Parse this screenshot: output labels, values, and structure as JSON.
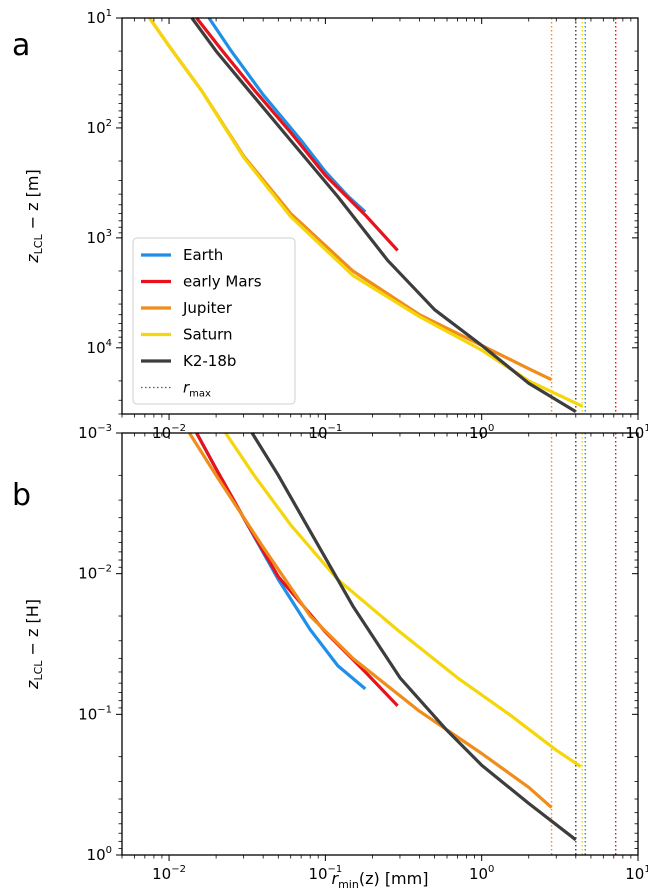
{
  "chart_data": [
    {
      "panel_label": "a",
      "type": "line",
      "x_scale": "log",
      "y_scale": "log",
      "y_inverted": true,
      "xlim": [
        0.005,
        10
      ],
      "ylim": [
        10,
        40000
      ],
      "x_ticks": [
        {
          "base": "10",
          "exp": "−2",
          "value": 0.01
        },
        {
          "base": "10",
          "exp": "−1",
          "value": 0.1
        },
        {
          "base": "10",
          "exp": "0",
          "value": 1
        },
        {
          "base": "10",
          "exp": "1",
          "value": 10
        }
      ],
      "y_ticks": [
        {
          "base": "10",
          "exp": "1",
          "value": 10
        },
        {
          "base": "10",
          "exp": "2",
          "value": 100
        },
        {
          "base": "10",
          "exp": "3",
          "value": 1000
        },
        {
          "base": "10",
          "exp": "4",
          "value": 10000
        }
      ],
      "ylabel": {
        "main": "z",
        "sub": "LCL",
        "rest": " − z [m]"
      },
      "legend": {
        "position": "lower-left",
        "entries": [
          "Earth",
          "early Mars",
          "Jupiter",
          "Saturn",
          "K2-18b",
          "r_max"
        ]
      },
      "series": [
        {
          "name": "Earth",
          "color": "#1f8fe8",
          "points": [
            [
              0.018,
              10
            ],
            [
              0.025,
              20
            ],
            [
              0.04,
              50
            ],
            [
              0.07,
              130
            ],
            [
              0.1,
              250
            ],
            [
              0.14,
              420
            ],
            [
              0.18,
              580
            ]
          ]
        },
        {
          "name": "early Mars",
          "color": "#e8121c",
          "points": [
            [
              0.015,
              10
            ],
            [
              0.022,
              20
            ],
            [
              0.035,
              45
            ],
            [
              0.06,
              110
            ],
            [
              0.1,
              270
            ],
            [
              0.18,
              620
            ],
            [
              0.29,
              1300
            ]
          ]
        },
        {
          "name": "Jupiter",
          "color": "#f08c1a",
          "points": [
            [
              0.0075,
              10
            ],
            [
              0.01,
              18
            ],
            [
              0.016,
              45
            ],
            [
              0.03,
              180
            ],
            [
              0.06,
              600
            ],
            [
              0.15,
              2000
            ],
            [
              0.4,
              5000
            ],
            [
              1.0,
              9500
            ],
            [
              2.0,
              15500
            ],
            [
              2.8,
              19500
            ]
          ]
        },
        {
          "name": "Saturn",
          "color": "#f5d60a",
          "points": [
            [
              0.0075,
              10
            ],
            [
              0.01,
              18
            ],
            [
              0.016,
              45
            ],
            [
              0.03,
              185
            ],
            [
              0.06,
              640
            ],
            [
              0.15,
              2200
            ],
            [
              0.4,
              5200
            ],
            [
              1.0,
              10500
            ],
            [
              2.0,
              20000
            ],
            [
              4.4,
              34000
            ]
          ]
        },
        {
          "name": "K2-18b",
          "color": "#3d3d3d",
          "points": [
            [
              0.014,
              10
            ],
            [
              0.02,
              20
            ],
            [
              0.03,
              40
            ],
            [
              0.06,
              130
            ],
            [
              0.12,
              420
            ],
            [
              0.25,
              1600
            ],
            [
              0.5,
              4500
            ],
            [
              1.0,
              9500
            ],
            [
              2.0,
              21000
            ],
            [
              4.0,
              38000
            ]
          ]
        }
      ],
      "rmax": [
        {
          "x": 2.8,
          "color": "#f08c1a"
        },
        {
          "x": 4.0,
          "color": "#3d3d3d"
        },
        {
          "x": 4.4,
          "color": "#f5d60a"
        },
        {
          "x": 4.6,
          "color": "#1f8fe8"
        },
        {
          "x": 7.2,
          "color": "#e8121c"
        }
      ]
    },
    {
      "panel_label": "b",
      "type": "line",
      "x_scale": "log",
      "y_scale": "log",
      "y_inverted": true,
      "xlim": [
        0.005,
        10
      ],
      "ylim": [
        0.001,
        1
      ],
      "x_ticks": [
        {
          "base": "10",
          "exp": "−2",
          "value": 0.01
        },
        {
          "base": "10",
          "exp": "−1",
          "value": 0.1
        },
        {
          "base": "10",
          "exp": "0",
          "value": 1
        },
        {
          "base": "10",
          "exp": "1",
          "value": 10
        }
      ],
      "y_ticks": [
        {
          "base": "10",
          "exp": "−3",
          "value": 0.001
        },
        {
          "base": "10",
          "exp": "−2",
          "value": 0.01
        },
        {
          "base": "10",
          "exp": "−1",
          "value": 0.1
        },
        {
          "base": "10",
          "exp": "0",
          "value": 1
        }
      ],
      "ylabel": {
        "main": "z",
        "sub": "LCL",
        "rest": " − z [H]"
      },
      "xlabel": {
        "main": "r",
        "sub": "min",
        "rest": "(z) [mm]"
      },
      "series": [
        {
          "name": "Earth",
          "color": "#1f8fe8",
          "points": [
            [
              0.015,
              0.001
            ],
            [
              0.02,
              0.0018
            ],
            [
              0.03,
              0.004
            ],
            [
              0.05,
              0.011
            ],
            [
              0.08,
              0.025
            ],
            [
              0.12,
              0.045
            ],
            [
              0.18,
              0.066
            ]
          ]
        },
        {
          "name": "early Mars",
          "color": "#e8121c",
          "points": [
            [
              0.015,
              0.001
            ],
            [
              0.02,
              0.0018
            ],
            [
              0.03,
              0.004
            ],
            [
              0.05,
              0.0105
            ],
            [
              0.1,
              0.026
            ],
            [
              0.18,
              0.05
            ],
            [
              0.29,
              0.087
            ]
          ]
        },
        {
          "name": "Jupiter",
          "color": "#f08c1a",
          "points": [
            [
              0.0135,
              0.001
            ],
            [
              0.02,
              0.002
            ],
            [
              0.04,
              0.0065
            ],
            [
              0.08,
              0.02
            ],
            [
              0.15,
              0.04
            ],
            [
              0.4,
              0.095
            ],
            [
              1.0,
              0.19
            ],
            [
              2.0,
              0.33
            ],
            [
              2.8,
              0.46
            ]
          ]
        },
        {
          "name": "Saturn",
          "color": "#f5d60a",
          "points": [
            [
              0.023,
              0.001
            ],
            [
              0.035,
              0.002
            ],
            [
              0.06,
              0.0045
            ],
            [
              0.12,
              0.011
            ],
            [
              0.3,
              0.026
            ],
            [
              0.7,
              0.055
            ],
            [
              1.5,
              0.1
            ],
            [
              3.0,
              0.18
            ],
            [
              4.3,
              0.235
            ]
          ]
        },
        {
          "name": "K2-18b",
          "color": "#3d3d3d",
          "points": [
            [
              0.034,
              0.001
            ],
            [
              0.05,
              0.002
            ],
            [
              0.08,
              0.005
            ],
            [
              0.15,
              0.017
            ],
            [
              0.3,
              0.055
            ],
            [
              0.6,
              0.13
            ],
            [
              1.0,
              0.23
            ],
            [
              2.0,
              0.43
            ],
            [
              4.0,
              0.78
            ]
          ]
        }
      ],
      "rmax": [
        {
          "x": 2.8,
          "color": "#f08c1a"
        },
        {
          "x": 4.0,
          "color": "#3d3d3d"
        },
        {
          "x": 4.4,
          "color": "#f5d60a"
        },
        {
          "x": 4.6,
          "color": "#1f8fe8"
        },
        {
          "x": 7.2,
          "color": "#e8121c"
        }
      ]
    }
  ]
}
